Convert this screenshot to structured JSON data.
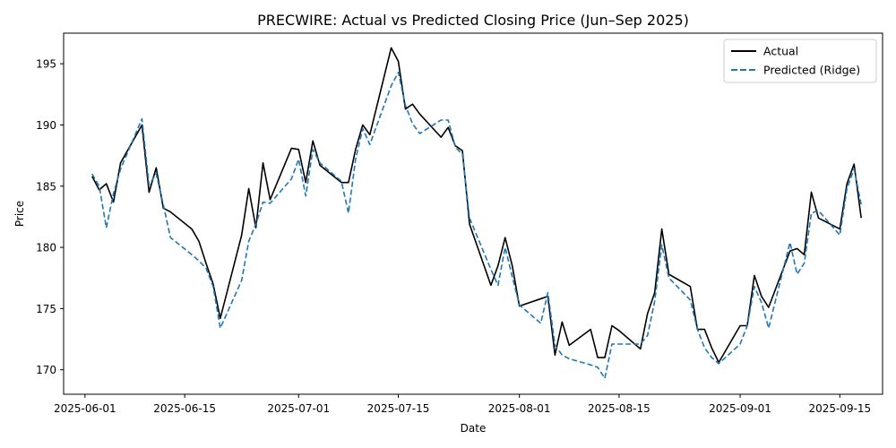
{
  "chart_data": {
    "type": "line",
    "title": "PRECWIRE: Actual vs Predicted Closing Price (Jun–Sep 2025)",
    "xlabel": "Date",
    "ylabel": "Price",
    "xlim": [
      "2025-05-29",
      "2025-09-21"
    ],
    "ylim": [
      168.0,
      197.5
    ],
    "x_ticks": [
      "2025-06-01",
      "2025-06-15",
      "2025-07-01",
      "2025-07-15",
      "2025-08-01",
      "2025-08-15",
      "2025-09-01",
      "2025-09-15"
    ],
    "y_ticks": [
      170,
      175,
      180,
      185,
      190,
      195
    ],
    "grid": false,
    "legend_position": "top-right",
    "colors": {
      "actual": "#000000",
      "predicted": "#1f77b4"
    },
    "series": [
      {
        "name": "Actual",
        "style": "solid",
        "color": "#000000",
        "points": [
          [
            "2025-06-02",
            185.8
          ],
          [
            "2025-06-03",
            184.7
          ],
          [
            "2025-06-04",
            185.2
          ],
          [
            "2025-06-05",
            183.7
          ],
          [
            "2025-06-06",
            186.9
          ],
          [
            "2025-06-09",
            190.0
          ],
          [
            "2025-06-10",
            184.5
          ],
          [
            "2025-06-11",
            186.5
          ],
          [
            "2025-06-12",
            183.2
          ],
          [
            "2025-06-13",
            182.9
          ],
          [
            "2025-06-16",
            181.5
          ],
          [
            "2025-06-17",
            180.5
          ],
          [
            "2025-06-18",
            178.7
          ],
          [
            "2025-06-19",
            177.0
          ],
          [
            "2025-06-20",
            174.2
          ],
          [
            "2025-06-23",
            181.0
          ],
          [
            "2025-06-24",
            184.8
          ],
          [
            "2025-06-25",
            181.6
          ],
          [
            "2025-06-26",
            186.9
          ],
          [
            "2025-06-27",
            183.9
          ],
          [
            "2025-06-30",
            188.1
          ],
          [
            "2025-07-01",
            188.0
          ],
          [
            "2025-07-02",
            185.3
          ],
          [
            "2025-07-03",
            188.7
          ],
          [
            "2025-07-04",
            186.7
          ],
          [
            "2025-07-07",
            185.3
          ],
          [
            "2025-07-08",
            185.3
          ],
          [
            "2025-07-09",
            188.0
          ],
          [
            "2025-07-10",
            190.0
          ],
          [
            "2025-07-11",
            189.2
          ],
          [
            "2025-07-14",
            196.3
          ],
          [
            "2025-07-15",
            195.2
          ],
          [
            "2025-07-16",
            191.3
          ],
          [
            "2025-07-17",
            191.7
          ],
          [
            "2025-07-18",
            190.9
          ],
          [
            "2025-07-21",
            189.0
          ],
          [
            "2025-07-22",
            189.8
          ],
          [
            "2025-07-23",
            188.3
          ],
          [
            "2025-07-24",
            187.9
          ],
          [
            "2025-07-25",
            181.9
          ],
          [
            "2025-07-28",
            176.9
          ],
          [
            "2025-07-29",
            178.5
          ],
          [
            "2025-07-30",
            180.8
          ],
          [
            "2025-07-31",
            178.5
          ],
          [
            "2025-08-01",
            175.2
          ],
          [
            "2025-08-04",
            175.8
          ],
          [
            "2025-08-05",
            176.0
          ],
          [
            "2025-08-06",
            171.2
          ],
          [
            "2025-08-07",
            173.9
          ],
          [
            "2025-08-08",
            172.0
          ],
          [
            "2025-08-11",
            173.3
          ],
          [
            "2025-08-12",
            171.0
          ],
          [
            "2025-08-13",
            171.0
          ],
          [
            "2025-08-14",
            173.6
          ],
          [
            "2025-08-15",
            173.2
          ],
          [
            "2025-08-18",
            171.7
          ],
          [
            "2025-08-19",
            174.6
          ],
          [
            "2025-08-20",
            176.3
          ],
          [
            "2025-08-21",
            181.5
          ],
          [
            "2025-08-22",
            177.8
          ],
          [
            "2025-08-25",
            176.8
          ],
          [
            "2025-08-26",
            173.3
          ],
          [
            "2025-08-27",
            173.3
          ],
          [
            "2025-08-28",
            171.8
          ],
          [
            "2025-08-29",
            170.6
          ],
          [
            "2025-09-01",
            173.6
          ],
          [
            "2025-09-02",
            173.6
          ],
          [
            "2025-09-03",
            177.7
          ],
          [
            "2025-09-04",
            176.0
          ],
          [
            "2025-09-05",
            175.1
          ],
          [
            "2025-09-08",
            179.7
          ],
          [
            "2025-09-09",
            179.9
          ],
          [
            "2025-09-10",
            179.4
          ],
          [
            "2025-09-11",
            184.5
          ],
          [
            "2025-09-12",
            182.4
          ],
          [
            "2025-09-15",
            181.5
          ],
          [
            "2025-09-16",
            185.2
          ],
          [
            "2025-09-17",
            186.8
          ],
          [
            "2025-09-18",
            182.4
          ]
        ]
      },
      {
        "name": "Predicted (Ridge)",
        "style": "dashed",
        "color": "#1f77b4",
        "points": [
          [
            "2025-06-02",
            186.0
          ],
          [
            "2025-06-03",
            185.0
          ],
          [
            "2025-06-04",
            181.6
          ],
          [
            "2025-06-05",
            184.4
          ],
          [
            "2025-06-06",
            186.4
          ],
          [
            "2025-06-09",
            190.5
          ],
          [
            "2025-06-10",
            185.1
          ],
          [
            "2025-06-11",
            186.0
          ],
          [
            "2025-06-12",
            183.5
          ],
          [
            "2025-06-13",
            180.8
          ],
          [
            "2025-06-16",
            179.4
          ],
          [
            "2025-06-17",
            178.9
          ],
          [
            "2025-06-18",
            178.3
          ],
          [
            "2025-06-19",
            176.8
          ],
          [
            "2025-06-20",
            173.4
          ],
          [
            "2025-06-23",
            177.3
          ],
          [
            "2025-06-24",
            180.5
          ],
          [
            "2025-06-25",
            181.9
          ],
          [
            "2025-06-26",
            183.7
          ],
          [
            "2025-06-27",
            183.6
          ],
          [
            "2025-06-30",
            185.6
          ],
          [
            "2025-07-01",
            187.2
          ],
          [
            "2025-07-02",
            184.2
          ],
          [
            "2025-07-03",
            188.0
          ],
          [
            "2025-07-04",
            186.9
          ],
          [
            "2025-07-07",
            185.4
          ],
          [
            "2025-07-08",
            182.8
          ],
          [
            "2025-07-09",
            187.2
          ],
          [
            "2025-07-10",
            189.7
          ],
          [
            "2025-07-11",
            188.4
          ],
          [
            "2025-07-14",
            193.2
          ],
          [
            "2025-07-15",
            194.3
          ],
          [
            "2025-07-16",
            191.6
          ],
          [
            "2025-07-17",
            190.1
          ],
          [
            "2025-07-18",
            189.3
          ],
          [
            "2025-07-21",
            190.4
          ],
          [
            "2025-07-22",
            190.4
          ],
          [
            "2025-07-23",
            188.2
          ],
          [
            "2025-07-24",
            187.6
          ],
          [
            "2025-07-25",
            182.4
          ],
          [
            "2025-07-28",
            178.2
          ],
          [
            "2025-07-29",
            176.9
          ],
          [
            "2025-07-30",
            180.0
          ],
          [
            "2025-07-31",
            177.6
          ],
          [
            "2025-08-01",
            175.3
          ],
          [
            "2025-08-04",
            173.8
          ],
          [
            "2025-08-05",
            176.3
          ],
          [
            "2025-08-06",
            172.0
          ],
          [
            "2025-08-07",
            171.2
          ],
          [
            "2025-08-08",
            170.9
          ],
          [
            "2025-08-11",
            170.4
          ],
          [
            "2025-08-12",
            170.2
          ],
          [
            "2025-08-13",
            169.3
          ],
          [
            "2025-08-14",
            172.1
          ],
          [
            "2025-08-15",
            172.1
          ],
          [
            "2025-08-18",
            172.1
          ],
          [
            "2025-08-19",
            172.8
          ],
          [
            "2025-08-20",
            175.6
          ],
          [
            "2025-08-21",
            180.2
          ],
          [
            "2025-08-22",
            177.5
          ],
          [
            "2025-08-25",
            175.7
          ],
          [
            "2025-08-26",
            173.3
          ],
          [
            "2025-08-27",
            171.8
          ],
          [
            "2025-08-28",
            171.0
          ],
          [
            "2025-08-29",
            170.5
          ],
          [
            "2025-09-01",
            172.1
          ],
          [
            "2025-09-02",
            173.6
          ],
          [
            "2025-09-03",
            176.8
          ],
          [
            "2025-09-04",
            175.5
          ],
          [
            "2025-09-05",
            173.4
          ],
          [
            "2025-09-08",
            180.4
          ],
          [
            "2025-09-09",
            177.8
          ],
          [
            "2025-09-10",
            178.7
          ],
          [
            "2025-09-11",
            182.8
          ],
          [
            "2025-09-12",
            183.0
          ],
          [
            "2025-09-15",
            181.0
          ],
          [
            "2025-09-16",
            184.8
          ],
          [
            "2025-09-17",
            186.4
          ],
          [
            "2025-09-18",
            183.5
          ]
        ]
      }
    ]
  }
}
